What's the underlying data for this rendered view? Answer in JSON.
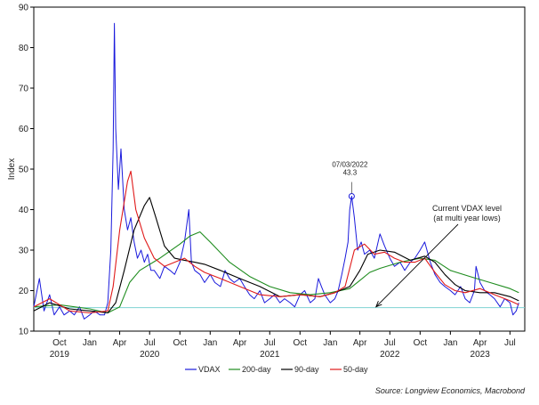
{
  "chart_data": {
    "type": "line",
    "title": "",
    "ylabel": "Index",
    "xlabel": "",
    "ylim": [
      10,
      90
    ],
    "yticks": [
      10,
      20,
      30,
      40,
      50,
      60,
      70,
      80,
      90
    ],
    "xlim": [
      "2019-07-15",
      "2023-08-15"
    ],
    "x_month_ticks": [
      {
        "date": "2019-10-01",
        "label": "Oct"
      },
      {
        "date": "2020-01-01",
        "label": "Jan"
      },
      {
        "date": "2020-04-01",
        "label": "Apr"
      },
      {
        "date": "2020-07-01",
        "label": "Jul"
      },
      {
        "date": "2020-10-01",
        "label": "Oct"
      },
      {
        "date": "2021-01-01",
        "label": "Jan"
      },
      {
        "date": "2021-04-01",
        "label": "Apr"
      },
      {
        "date": "2021-07-01",
        "label": "Jul"
      },
      {
        "date": "2021-10-01",
        "label": "Oct"
      },
      {
        "date": "2022-01-01",
        "label": "Jan"
      },
      {
        "date": "2022-04-01",
        "label": "Apr"
      },
      {
        "date": "2022-07-01",
        "label": "Jul"
      },
      {
        "date": "2022-10-01",
        "label": "Oct"
      },
      {
        "date": "2023-01-01",
        "label": "Jan"
      },
      {
        "date": "2023-04-01",
        "label": "Apr"
      },
      {
        "date": "2023-07-01",
        "label": "Jul"
      }
    ],
    "x_year_labels": [
      {
        "date": "2019-10-01",
        "label": "2019"
      },
      {
        "date": "2020-07-01",
        "label": "2020"
      },
      {
        "date": "2021-07-01",
        "label": "2021"
      },
      {
        "date": "2022-07-01",
        "label": "2022"
      },
      {
        "date": "2023-04-01",
        "label": "2023"
      }
    ],
    "series": [
      {
        "name": "VDAX",
        "color": "#1a1adc",
        "x": [
          "2019-07-15",
          "2019-08-01",
          "2019-08-15",
          "2019-09-01",
          "2019-09-15",
          "2019-10-01",
          "2019-10-15",
          "2019-11-01",
          "2019-11-15",
          "2019-12-01",
          "2019-12-15",
          "2020-01-01",
          "2020-01-15",
          "2020-02-01",
          "2020-02-15",
          "2020-02-25",
          "2020-03-05",
          "2020-03-12",
          "2020-03-16",
          "2020-03-20",
          "2020-03-28",
          "2020-04-05",
          "2020-04-15",
          "2020-04-25",
          "2020-05-05",
          "2020-05-15",
          "2020-05-25",
          "2020-06-05",
          "2020-06-15",
          "2020-06-25",
          "2020-07-05",
          "2020-07-15",
          "2020-08-01",
          "2020-08-15",
          "2020-09-01",
          "2020-09-15",
          "2020-10-01",
          "2020-10-15",
          "2020-10-28",
          "2020-11-05",
          "2020-11-15",
          "2020-12-01",
          "2020-12-15",
          "2021-01-01",
          "2021-01-15",
          "2021-02-01",
          "2021-02-15",
          "2021-03-01",
          "2021-03-15",
          "2021-04-01",
          "2021-04-15",
          "2021-05-01",
          "2021-05-15",
          "2021-06-01",
          "2021-06-15",
          "2021-07-01",
          "2021-07-15",
          "2021-08-01",
          "2021-08-15",
          "2021-09-01",
          "2021-09-15",
          "2021-10-01",
          "2021-10-15",
          "2021-11-01",
          "2021-11-15",
          "2021-11-26",
          "2021-12-05",
          "2021-12-15",
          "2022-01-01",
          "2022-01-15",
          "2022-01-25",
          "2022-02-05",
          "2022-02-15",
          "2022-02-24",
          "2022-03-01",
          "2022-03-07",
          "2022-03-15",
          "2022-03-25",
          "2022-04-05",
          "2022-04-15",
          "2022-05-01",
          "2022-05-15",
          "2022-06-01",
          "2022-06-15",
          "2022-07-01",
          "2022-07-15",
          "2022-08-01",
          "2022-08-15",
          "2022-09-01",
          "2022-09-15",
          "2022-10-01",
          "2022-10-15",
          "2022-11-01",
          "2022-11-15",
          "2022-12-01",
          "2022-12-15",
          "2023-01-01",
          "2023-01-15",
          "2023-02-01",
          "2023-02-15",
          "2023-03-01",
          "2023-03-15",
          "2023-03-20",
          "2023-04-01",
          "2023-04-15",
          "2023-05-01",
          "2023-05-15",
          "2023-06-01",
          "2023-06-15",
          "2023-07-01",
          "2023-07-10",
          "2023-07-20",
          "2023-07-28"
        ],
        "y": [
          16,
          23,
          15,
          19,
          14,
          16,
          14,
          15,
          14,
          16,
          13,
          14,
          15,
          14,
          14,
          17,
          30,
          55,
          86,
          60,
          45,
          55,
          40,
          35,
          38,
          32,
          28,
          30,
          27,
          29,
          25,
          25,
          23,
          26,
          25,
          24,
          27,
          32,
          40,
          27,
          25,
          24,
          22,
          24,
          22,
          21,
          25,
          23,
          22,
          23,
          21,
          19,
          18,
          20,
          17,
          18,
          19,
          17,
          18,
          17,
          16,
          19,
          20,
          17,
          18,
          23,
          21,
          19,
          17,
          18,
          20,
          24,
          28,
          32,
          40,
          43.3,
          38,
          30,
          32,
          29,
          30,
          28,
          34,
          31,
          28,
          26,
          27,
          25,
          27,
          28,
          30,
          32,
          27,
          24,
          22,
          21,
          20,
          19,
          21,
          18,
          17,
          20,
          26,
          22,
          20,
          19,
          18,
          16,
          18,
          17,
          14,
          15,
          17
        ]
      },
      {
        "name": "200-day",
        "color": "#1e8c1e",
        "x": [
          "2019-07-15",
          "2019-10-01",
          "2020-01-01",
          "2020-02-25",
          "2020-04-01",
          "2020-05-01",
          "2020-06-01",
          "2020-08-01",
          "2020-10-01",
          "2020-11-01",
          "2020-12-01",
          "2021-01-01",
          "2021-03-01",
          "2021-05-01",
          "2021-07-01",
          "2021-09-01",
          "2021-11-01",
          "2022-01-01",
          "2022-03-01",
          "2022-04-01",
          "2022-05-01",
          "2022-06-01",
          "2022-08-01",
          "2022-10-01",
          "2022-11-15",
          "2023-01-01",
          "2023-03-01",
          "2023-05-01",
          "2023-07-01",
          "2023-07-28"
        ],
        "y": [
          16,
          16.5,
          15.5,
          14.5,
          16,
          22,
          25,
          28,
          31.5,
          33.5,
          34.5,
          32,
          27,
          23.5,
          21,
          19.5,
          19,
          19.5,
          20.5,
          22.5,
          24.5,
          25.5,
          27,
          28,
          27.5,
          25,
          23.5,
          22,
          20.5,
          19.5
        ]
      },
      {
        "name": "90-day",
        "color": "#000000",
        "x": [
          "2019-07-15",
          "2019-09-01",
          "2019-11-01",
          "2020-01-01",
          "2020-02-25",
          "2020-03-20",
          "2020-04-15",
          "2020-05-15",
          "2020-06-15",
          "2020-07-01",
          "2020-07-20",
          "2020-08-15",
          "2020-09-15",
          "2020-10-15",
          "2020-11-15",
          "2020-12-15",
          "2021-02-01",
          "2021-04-01",
          "2021-06-01",
          "2021-08-01",
          "2021-10-01",
          "2021-12-01",
          "2022-01-15",
          "2022-03-01",
          "2022-04-01",
          "2022-04-25",
          "2022-06-01",
          "2022-07-15",
          "2022-09-01",
          "2022-10-15",
          "2022-11-15",
          "2022-12-15",
          "2023-01-15",
          "2023-02-15",
          "2023-04-01",
          "2023-05-15",
          "2023-07-01",
          "2023-07-28"
        ],
        "y": [
          15,
          17,
          15.5,
          15,
          14.5,
          17,
          25,
          35,
          41,
          43,
          38,
          31,
          28,
          27.5,
          27,
          26.5,
          25,
          23,
          21,
          18.5,
          19,
          18.5,
          19.5,
          21,
          25,
          29,
          30,
          29.5,
          27.5,
          28.5,
          27,
          24,
          21.5,
          20,
          19.5,
          19.5,
          18.5,
          17.5
        ]
      },
      {
        "name": "50-day",
        "color": "#e01a1a",
        "x": [
          "2019-07-15",
          "2019-09-01",
          "2019-11-01",
          "2020-01-01",
          "2020-02-25",
          "2020-03-12",
          "2020-04-01",
          "2020-04-25",
          "2020-05-05",
          "2020-05-20",
          "2020-06-15",
          "2020-07-15",
          "2020-08-15",
          "2020-09-15",
          "2020-10-15",
          "2020-11-15",
          "2020-12-15",
          "2021-02-01",
          "2021-04-01",
          "2021-06-01",
          "2021-08-01",
          "2021-10-01",
          "2021-12-01",
          "2022-01-15",
          "2022-02-15",
          "2022-03-15",
          "2022-04-15",
          "2022-05-15",
          "2022-06-15",
          "2022-07-15",
          "2022-08-15",
          "2022-09-15",
          "2022-10-15",
          "2022-11-15",
          "2022-12-15",
          "2023-01-15",
          "2023-02-15",
          "2023-04-01",
          "2023-05-15",
          "2023-07-01",
          "2023-07-28"
        ],
        "y": [
          16,
          18,
          15,
          14.5,
          15,
          21,
          35,
          47,
          49.5,
          40,
          33,
          28,
          26,
          27,
          28,
          26,
          24.5,
          23,
          21,
          19,
          18.5,
          19,
          18.5,
          19.5,
          21,
          30,
          31.5,
          29,
          29.5,
          28,
          27,
          27,
          28,
          24.5,
          21.5,
          20,
          19.5,
          20.5,
          19,
          17.5,
          16.5
        ]
      }
    ],
    "current_level": {
      "value": 15.8,
      "color": "#7fd3d3"
    },
    "annotations": [
      {
        "label": "07/03/2022",
        "value_label": "43.3",
        "date": "2022-03-07",
        "value": 43.3
      },
      {
        "line1": "Current VDAX level",
        "line2": "(at multi year lows)",
        "arrow_to_date": "2022-05-20",
        "arrow_to_value": 16.0
      }
    ],
    "legend": {
      "position": "bottom"
    },
    "source": "Source: Longview Economics, Macrobond"
  }
}
